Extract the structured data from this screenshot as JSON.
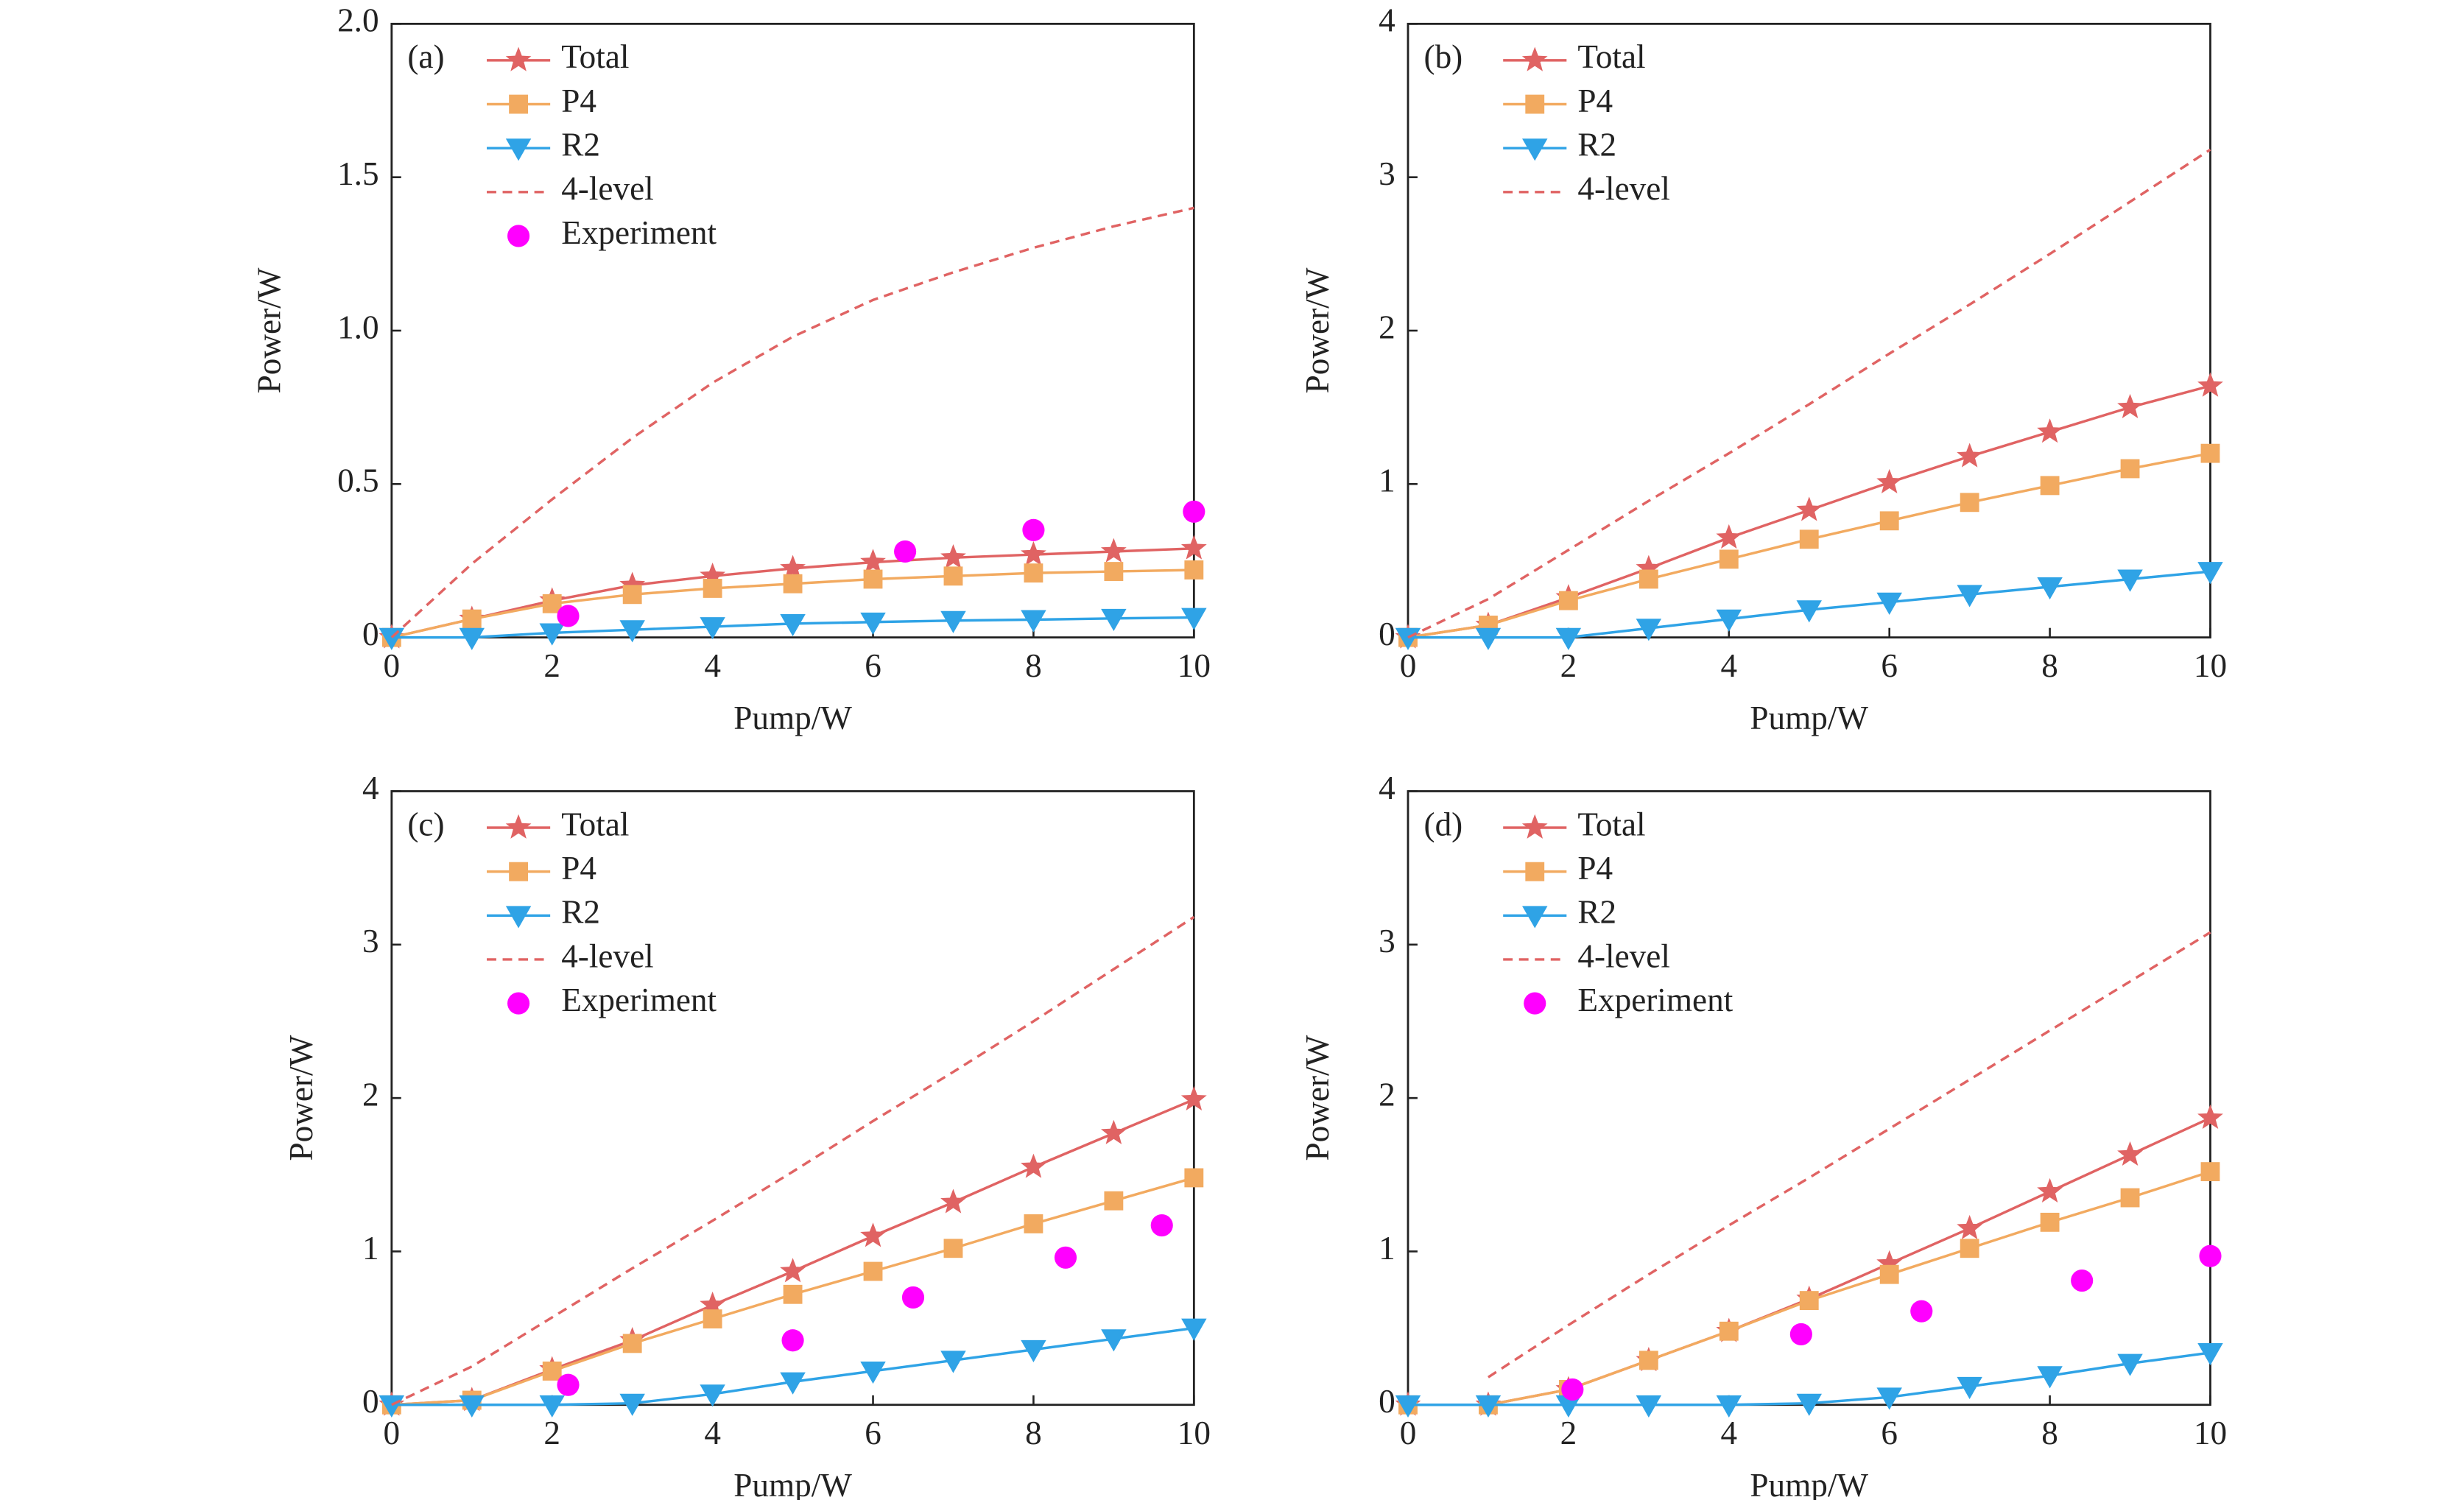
{
  "chart_data": [
    {
      "type": "line",
      "label": "(a)",
      "xlabel": "Pump/W",
      "ylabel": "Power/W",
      "x": [
        0,
        1,
        2,
        3,
        4,
        5,
        6,
        7,
        8,
        9,
        10
      ],
      "xlim": [
        0,
        10
      ],
      "xticks": [
        0,
        2,
        4,
        6,
        8,
        10
      ],
      "ylim": [
        0,
        2
      ],
      "yticks": [
        0,
        0.5,
        {
          "value": 1,
          "label": "1.0"
        },
        1.5,
        {
          "value": 2,
          "label": "2.0"
        }
      ],
      "series": [
        {
          "name": "Total",
          "color": "#e06363",
          "marker": "star",
          "line": "solid",
          "values": [
            0,
            0.06,
            0.12,
            0.17,
            0.2,
            0.225,
            0.245,
            0.26,
            0.27,
            0.28,
            0.29
          ]
        },
        {
          "name": "P4",
          "color": "#f2aa60",
          "marker": "square",
          "line": "solid",
          "values": [
            0,
            0.06,
            0.11,
            0.14,
            0.16,
            0.175,
            0.19,
            0.2,
            0.21,
            0.215,
            0.22
          ]
        },
        {
          "name": "R2",
          "color": "#2fa3e6",
          "marker": "triangle-down",
          "line": "solid",
          "values": [
            0,
            0,
            0.015,
            0.025,
            0.035,
            0.045,
            0.05,
            0.055,
            0.058,
            0.062,
            0.065
          ]
        },
        {
          "name": "4-level",
          "color": "#e06363",
          "marker": null,
          "line": "dashed",
          "values": [
            0,
            0.24,
            0.45,
            0.65,
            0.83,
            0.98,
            1.1,
            1.19,
            1.27,
            1.34,
            1.4
          ]
        },
        {
          "name": "Experiment",
          "color": "#ff00ff",
          "marker": "circle",
          "line": "none",
          "x": [
            2.2,
            6.4,
            8,
            10
          ],
          "values": [
            0.07,
            0.28,
            0.35,
            0.41
          ]
        }
      ]
    },
    {
      "type": "line",
      "label": "(b)",
      "xlabel": "Pump/W",
      "ylabel": "Power/W",
      "x": [
        0,
        1,
        2,
        3,
        4,
        5,
        6,
        7,
        8,
        9,
        10
      ],
      "xlim": [
        0,
        10
      ],
      "xticks": [
        0,
        2,
        4,
        6,
        8,
        10
      ],
      "ylim": [
        0,
        4
      ],
      "yticks": [
        0,
        1,
        2,
        3,
        4
      ],
      "series": [
        {
          "name": "Total",
          "color": "#e06363",
          "marker": "star",
          "line": "solid",
          "values": [
            0,
            0.08,
            0.26,
            0.45,
            0.65,
            0.83,
            1.01,
            1.18,
            1.34,
            1.5,
            1.64
          ]
        },
        {
          "name": "P4",
          "color": "#f2aa60",
          "marker": "square",
          "line": "solid",
          "values": [
            0,
            0.08,
            0.24,
            0.38,
            0.51,
            0.64,
            0.76,
            0.88,
            0.99,
            1.1,
            1.2
          ]
        },
        {
          "name": "R2",
          "color": "#2fa3e6",
          "marker": "triangle-down",
          "line": "solid",
          "values": [
            0,
            0,
            0,
            0.06,
            0.12,
            0.18,
            0.23,
            0.28,
            0.33,
            0.38,
            0.43
          ]
        },
        {
          "name": "4-level",
          "color": "#e06363",
          "marker": null,
          "line": "dashed",
          "values": [
            0,
            0.25,
            0.57,
            0.89,
            1.2,
            1.52,
            1.85,
            2.17,
            2.5,
            2.84,
            3.18
          ]
        }
      ]
    },
    {
      "type": "line",
      "label": "(c)",
      "xlabel": "Pump/W",
      "ylabel": "Power/W",
      "x": [
        0,
        1,
        2,
        3,
        4,
        5,
        6,
        7,
        8,
        9,
        10
      ],
      "xlim": [
        0,
        10
      ],
      "xticks": [
        0,
        2,
        4,
        6,
        8,
        10
      ],
      "ylim": [
        0,
        4
      ],
      "yticks": [
        0,
        1,
        2,
        3,
        4
      ],
      "series": [
        {
          "name": "Total",
          "color": "#e06363",
          "marker": "star",
          "line": "solid",
          "values": [
            0,
            0.03,
            0.23,
            0.42,
            0.65,
            0.87,
            1.1,
            1.32,
            1.55,
            1.77,
            1.99
          ]
        },
        {
          "name": "P4",
          "color": "#f2aa60",
          "marker": "square",
          "line": "solid",
          "values": [
            0,
            0.03,
            0.22,
            0.4,
            0.56,
            0.72,
            0.87,
            1.02,
            1.18,
            1.33,
            1.48
          ]
        },
        {
          "name": "R2",
          "color": "#2fa3e6",
          "marker": "triangle-down",
          "line": "solid",
          "values": [
            0,
            0,
            0,
            0.01,
            0.07,
            0.15,
            0.22,
            0.29,
            0.36,
            0.43,
            0.5
          ]
        },
        {
          "name": "4-level",
          "color": "#e06363",
          "marker": null,
          "line": "dashed",
          "values": [
            0,
            0.25,
            0.57,
            0.89,
            1.2,
            1.52,
            1.85,
            2.17,
            2.5,
            2.84,
            3.18
          ]
        },
        {
          "name": "Experiment",
          "color": "#ff00ff",
          "marker": "circle",
          "line": "none",
          "x": [
            2.2,
            5,
            6.5,
            8.4,
            9.6
          ],
          "values": [
            0.13,
            0.42,
            0.7,
            0.96,
            1.17
          ]
        }
      ]
    },
    {
      "type": "line",
      "label": "(d)",
      "xlabel": "Pump/W",
      "ylabel": "Power/W",
      "x": [
        0,
        1,
        2,
        3,
        4,
        5,
        6,
        7,
        8,
        9,
        10
      ],
      "xlim": [
        0,
        10
      ],
      "xticks": [
        0,
        2,
        4,
        6,
        8,
        10
      ],
      "ylim": [
        0,
        4
      ],
      "yticks": [
        0,
        1,
        2,
        3,
        4
      ],
      "series": [
        {
          "name": "Total",
          "color": "#e06363",
          "marker": "star",
          "line": "solid",
          "values": [
            0,
            0,
            0.1,
            0.29,
            0.48,
            0.69,
            0.92,
            1.15,
            1.39,
            1.63,
            1.87
          ]
        },
        {
          "name": "P4",
          "color": "#f2aa60",
          "marker": "square",
          "line": "solid",
          "values": [
            0,
            0,
            0.1,
            0.29,
            0.48,
            0.68,
            0.85,
            1.02,
            1.19,
            1.35,
            1.52
          ]
        },
        {
          "name": "R2",
          "color": "#2fa3e6",
          "marker": "triangle-down",
          "line": "solid",
          "values": [
            0,
            0,
            0,
            0,
            0,
            0.01,
            0.05,
            0.12,
            0.19,
            0.27,
            0.34
          ]
        },
        {
          "name": "4-level",
          "color": "#e06363",
          "marker": null,
          "line": "dashed",
          "values": [
            null,
            0.18,
            0.52,
            0.85,
            1.17,
            1.48,
            1.8,
            2.12,
            2.44,
            2.76,
            3.08
          ]
        },
        {
          "name": "Experiment",
          "color": "#ff00ff",
          "marker": "circle",
          "line": "none",
          "x": [
            2.05,
            4.9,
            6.4,
            8.4,
            10
          ],
          "values": [
            0.1,
            0.46,
            0.61,
            0.81,
            0.97
          ]
        }
      ]
    }
  ]
}
